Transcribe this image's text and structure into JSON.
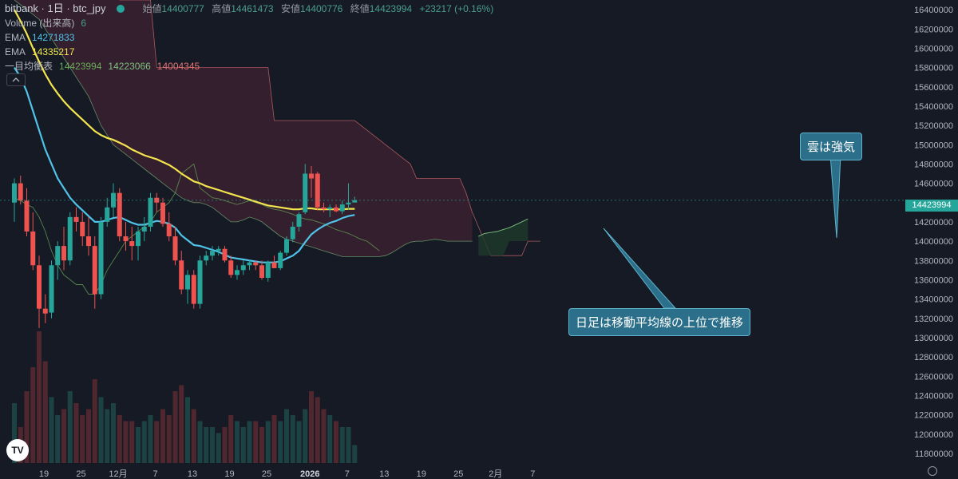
{
  "legend": {
    "symbol": "bitbank · 1日 · btc_jpy",
    "open_label": "始値",
    "open": "14400777",
    "high_label": "高値",
    "high": "14461473",
    "low_label": "安値",
    "low": "14400776",
    "close_label": "終値",
    "close": "14423994",
    "change": "+23217 (+0.16%)",
    "volume_label": "Volume (出来高)",
    "volume": "6",
    "ema1_label": "EMA",
    "ema1": "14271833",
    "ema2_label": "EMA",
    "ema2": "14335217",
    "ichimoku_label": "一目均衡表",
    "ichimoku_v1": "14423994",
    "ichimoku_v2": "14223066",
    "ichimoku_v3": "14004345"
  },
  "last_price": "14423994",
  "callouts": {
    "cloud": "雲は強気",
    "daily": "日足は移動平均線の上位で推移"
  },
  "colors": {
    "up": "#26a69a",
    "down": "#ef5350",
    "ema_fast": "#4fc3e8",
    "ema_slow": "#f4e44d",
    "cloud_bear": "#3d2230",
    "cloud_bull": "#1e3a2a",
    "span_a": "#7fbf7f",
    "span_b": "#e57373",
    "chikou": "#6aaa5a"
  },
  "chart_data": {
    "type": "candlestick",
    "y_axis": {
      "range": [
        11700000,
        16500000
      ],
      "ticks": [
        "11800000",
        "12000000",
        "12200000",
        "12400000",
        "12600000",
        "12800000",
        "13000000",
        "13200000",
        "13400000",
        "13600000",
        "13800000",
        "14000000",
        "14200000",
        "14400000",
        "14600000",
        "14800000",
        "15000000",
        "15200000",
        "15400000",
        "15600000",
        "15800000",
        "16000000",
        "16200000",
        "16400000"
      ]
    },
    "x_axis": {
      "labels": [
        "19",
        "25",
        "12月",
        "7",
        "13",
        "19",
        "25",
        "2026",
        "7",
        "13",
        "19",
        "25",
        "2月",
        "7"
      ],
      "label_index": [
        0,
        6,
        12,
        18,
        24,
        30,
        36,
        43,
        49,
        55,
        61,
        67,
        73,
        79
      ]
    },
    "candles": [
      [
        14400000,
        14650000,
        14200000,
        14600000
      ],
      [
        14600000,
        14680000,
        14380000,
        14420000
      ],
      [
        14420000,
        14550000,
        14050000,
        14100000
      ],
      [
        14100000,
        14300000,
        13700000,
        13750000
      ],
      [
        13750000,
        13850000,
        13100000,
        13300000
      ],
      [
        13300000,
        13450000,
        13150000,
        13250000
      ],
      [
        13260000,
        13800000,
        13200000,
        13750000
      ],
      [
        13750000,
        14000000,
        13600000,
        13950000
      ],
      [
        13950000,
        14150000,
        13700000,
        13800000
      ],
      [
        13800000,
        14300000,
        13750000,
        14250000
      ],
      [
        14250000,
        14350000,
        14100000,
        14200000
      ],
      [
        14200000,
        14300000,
        13950000,
        14050000
      ],
      [
        14050000,
        14250000,
        13850000,
        13950000
      ],
      [
        13950000,
        14050000,
        13300000,
        13450000
      ],
      [
        13450000,
        14250000,
        13400000,
        14200000
      ],
      [
        14200000,
        14450000,
        14150000,
        14350000
      ],
      [
        14350000,
        14600000,
        14250000,
        14500000
      ],
      [
        14500000,
        14550000,
        14000000,
        14050000
      ],
      [
        14050000,
        14200000,
        13900000,
        14000000
      ],
      [
        14000000,
        14150000,
        13800000,
        13950000
      ],
      [
        13950000,
        14150000,
        13800000,
        14100000
      ],
      [
        14100000,
        14250000,
        14000000,
        14150000
      ],
      [
        14150000,
        14500000,
        14100000,
        14450000
      ],
      [
        14450000,
        14500000,
        14300000,
        14400000
      ],
      [
        14400000,
        14450000,
        14150000,
        14180000
      ],
      [
        14180000,
        14300000,
        14000000,
        14050000
      ],
      [
        14050000,
        14150000,
        13750000,
        13800000
      ],
      [
        13800000,
        13900000,
        13450000,
        13500000
      ],
      [
        13500000,
        13700000,
        13350000,
        13650000
      ],
      [
        13650000,
        13700000,
        13300000,
        13350000
      ],
      [
        13350000,
        13850000,
        13300000,
        13800000
      ],
      [
        13800000,
        13900000,
        13750000,
        13850000
      ],
      [
        13850000,
        13950000,
        13800000,
        13900000
      ],
      [
        13900000,
        13950000,
        13850000,
        13920000
      ],
      [
        13920000,
        13950000,
        13780000,
        13800000
      ],
      [
        13800000,
        13850000,
        13620000,
        13650000
      ],
      [
        13650000,
        13750000,
        13600000,
        13700000
      ],
      [
        13700000,
        13800000,
        13650000,
        13750000
      ],
      [
        13750000,
        13800000,
        13700000,
        13780000
      ],
      [
        13780000,
        13800000,
        13700000,
        13750000
      ],
      [
        13750000,
        13800000,
        13600000,
        13620000
      ],
      [
        13620000,
        13800000,
        13580000,
        13780000
      ],
      [
        13780000,
        13850000,
        13720000,
        13720000
      ],
      [
        13720000,
        13900000,
        13700000,
        13880000
      ],
      [
        13880000,
        14050000,
        13850000,
        14020000
      ],
      [
        14020000,
        14200000,
        13990000,
        14150000
      ],
      [
        14150000,
        14300000,
        14100000,
        14280000
      ],
      [
        14300000,
        14800000,
        14280000,
        14700000
      ],
      [
        14700000,
        14780000,
        14450000,
        14650000
      ],
      [
        14700000,
        14720000,
        14320000,
        14350000
      ],
      [
        14350000,
        14400000,
        14300000,
        14330000
      ],
      [
        14330000,
        14380000,
        14250000,
        14350000
      ],
      [
        14350000,
        14380000,
        14300000,
        14310000
      ],
      [
        14310000,
        14420000,
        14280000,
        14380000
      ],
      [
        14380000,
        14600000,
        14330000,
        14400000
      ],
      [
        14400777,
        14461473,
        14400776,
        14423994
      ]
    ],
    "volume": [
      50,
      30,
      60,
      80,
      110,
      85,
      55,
      40,
      45,
      60,
      50,
      40,
      45,
      70,
      55,
      45,
      50,
      40,
      35,
      35,
      30,
      35,
      40,
      35,
      45,
      40,
      60,
      65,
      55,
      45,
      35,
      30,
      30,
      25,
      30,
      40,
      35,
      30,
      35,
      35,
      30,
      35,
      40,
      35,
      45,
      40,
      35,
      45,
      60,
      55,
      45,
      40,
      35,
      30,
      30,
      15
    ],
    "ema_fast": [
      15800000,
      15700000,
      15550000,
      15350000,
      15150000,
      14950000,
      14800000,
      14650000,
      14550000,
      14450000,
      14380000,
      14320000,
      14260000,
      14200000,
      14200000,
      14220000,
      14240000,
      14250000,
      14220000,
      14190000,
      14170000,
      14170000,
      14190000,
      14210000,
      14200000,
      14180000,
      14140000,
      14060000,
      14010000,
      13960000,
      13950000,
      13930000,
      13910000,
      13890000,
      13860000,
      13830000,
      13820000,
      13810000,
      13800000,
      13790000,
      13780000,
      13780000,
      13780000,
      13790000,
      13820000,
      13850000,
      13900000,
      13990000,
      14070000,
      14120000,
      14160000,
      14190000,
      14210000,
      14240000,
      14260000,
      14272000
    ],
    "ema_slow": [
      16400000,
      16280000,
      16150000,
      16000000,
      15860000,
      15730000,
      15620000,
      15530000,
      15450000,
      15380000,
      15320000,
      15260000,
      15200000,
      15140000,
      15100000,
      15070000,
      15050000,
      15020000,
      14990000,
      14950000,
      14920000,
      14890000,
      14870000,
      14850000,
      14820000,
      14790000,
      14750000,
      14700000,
      14660000,
      14620000,
      14600000,
      14570000,
      14550000,
      14530000,
      14510000,
      14490000,
      14470000,
      14450000,
      14430000,
      14410000,
      14390000,
      14370000,
      14360000,
      14350000,
      14340000,
      14330000,
      14330000,
      14340000,
      14340000,
      14330000,
      14330000,
      14330000,
      14330000,
      14330000,
      14335000,
      14335217
    ],
    "span_a_bear": [
      16500000,
      16450000,
      16400000,
      16350000,
      16300000,
      16200000,
      16100000,
      16000000,
      15900000,
      15800000,
      15700000,
      15600000,
      15500000,
      15350000,
      15200000,
      15100000,
      15000000,
      14950000,
      14900000,
      14850000,
      14800000,
      14750000,
      14700000,
      14650000,
      14600000,
      14550000,
      14500000,
      14450000,
      14420000,
      14400000,
      14400000,
      14380000,
      14350000,
      14300000,
      14250000,
      14200000,
      14200000,
      14220000,
      14250000,
      14230000,
      14200000,
      14150000,
      14100000,
      14050000,
      14020000,
      14000000,
      13980000,
      13960000,
      13940000,
      13920000,
      13900000,
      13880000,
      13860000,
      13840000,
      13840000,
      13840000,
      13840000,
      13840000,
      13840000,
      13840000,
      13850000,
      13880000,
      13920000,
      13960000,
      13990000,
      14000000,
      14000000,
      14010000,
      14020000,
      14010000,
      14000000,
      14000000,
      14000000,
      14000000,
      14000000
    ],
    "span_b_bear": [
      16600000,
      16600000,
      16600000,
      16600000,
      16600000,
      16600000,
      16600000,
      16600000,
      16600000,
      16600000,
      16600000,
      16600000,
      16600000,
      16600000,
      16600000,
      16600000,
      16600000,
      16500000,
      16500000,
      16500000,
      16500000,
      16500000,
      16500000,
      15800000,
      15800000,
      15800000,
      15800000,
      15800000,
      15800000,
      15800000,
      15800000,
      15800000,
      15800000,
      15800000,
      15800000,
      15800000,
      15800000,
      15800000,
      15800000,
      15800000,
      15800000,
      15800000,
      15250000,
      15250000,
      15250000,
      15250000,
      15250000,
      15250000,
      15250000,
      15250000,
      15250000,
      15250000,
      15250000,
      15250000,
      15250000,
      15250000,
      15200000,
      15150000,
      15100000,
      15050000,
      15000000,
      14950000,
      14900000,
      14850000,
      14800000,
      14650000,
      14650000,
      14650000,
      14650000,
      14650000,
      14650000,
      14650000,
      14650000,
      14500000,
      14300000,
      14150000,
      14000000,
      13850000,
      13850000,
      13850000,
      13850000,
      13850000,
      13850000,
      14000000,
      14000000,
      14000000
    ],
    "cloud_bull_a": [
      14050000,
      14080000,
      14090000,
      14100000,
      14120000,
      14140000,
      14170000,
      14200000,
      14230000
    ],
    "cloud_bull_b": [
      13850000,
      13850000,
      13850000,
      13850000,
      13850000,
      14000000,
      14000000,
      14000000,
      14000000
    ],
    "chikou": [
      14450000,
      14420000,
      14380000,
      14350000,
      14250000,
      14100000,
      13900000,
      13750000,
      13650000,
      13600000,
      13550000,
      13550000,
      13450000,
      13450000,
      13550000,
      13700000,
      13800000,
      13900000,
      14000000,
      14050000,
      14100000,
      14150000,
      14200000,
      14300000,
      14350000,
      14400000,
      14500000,
      14700000,
      14750000,
      14800000,
      14550000,
      14500000,
      14450000,
      14440000,
      14420000,
      14400000,
      14380000,
      14400000,
      14420000,
      14400000,
      14380000,
      14350000,
      14330000,
      14320000,
      14300000,
      14280000,
      14250000,
      14230000,
      14220000,
      14200000,
      14180000,
      14150000,
      14120000,
      14100000,
      14080000,
      14050000,
      14020000,
      14000000,
      13950000,
      13900000,
      13850000,
      13800000,
      13780000,
      13750000,
      13740000,
      13730000,
      13720000,
      13710000,
      13700000,
      13700000,
      13700000,
      13700000,
      13700000,
      13700000,
      13700000
    ]
  }
}
